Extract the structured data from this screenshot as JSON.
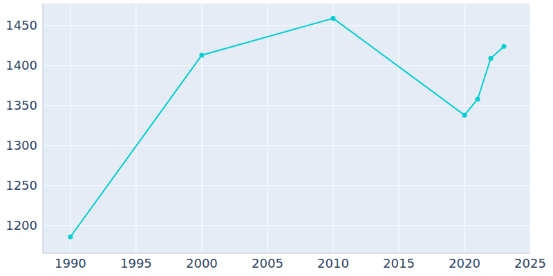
{
  "chart_data": {
    "type": "line",
    "x": [
      1990,
      2000,
      2010,
      2020,
      2021,
      2022,
      2023
    ],
    "values": [
      1186,
      1413,
      1459,
      1338,
      1358,
      1409,
      1424
    ],
    "color": "#00ced1",
    "marker": "circle",
    "xlim": [
      1987.9,
      2025
    ],
    "xticks": [
      1990,
      1995,
      2000,
      2005,
      2010,
      2015,
      2020,
      2025
    ],
    "ylim": [
      1165.5,
      1477.6
    ],
    "yticks": [
      1200,
      1250,
      1300,
      1350,
      1400,
      1450
    ],
    "grid": true
  }
}
